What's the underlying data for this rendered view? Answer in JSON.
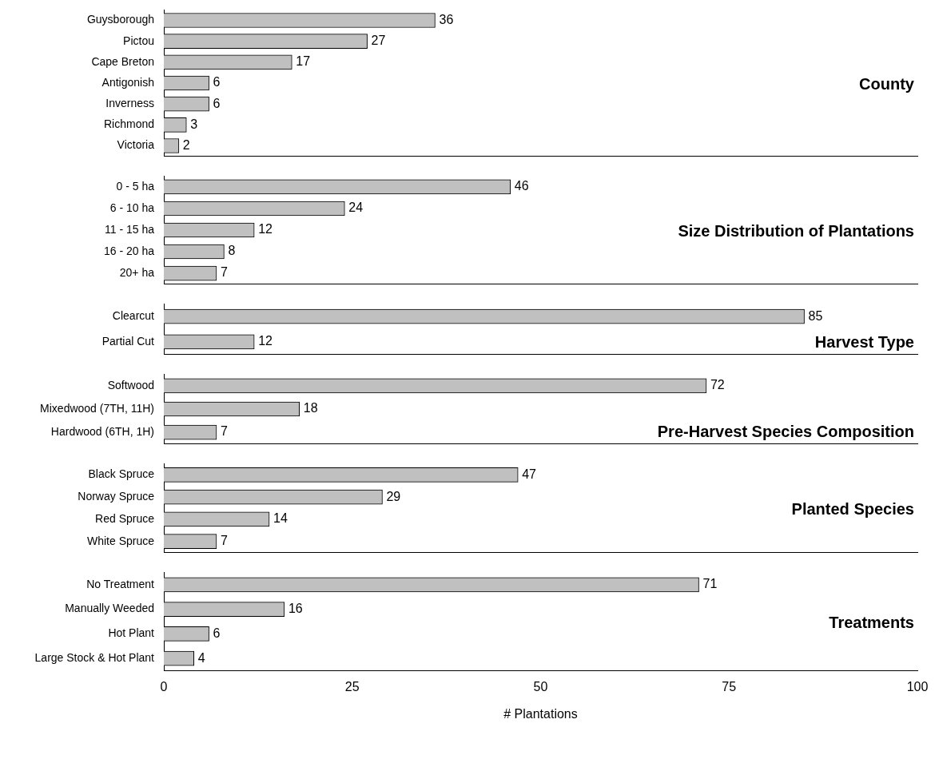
{
  "chart_data": [
    {
      "type": "bar",
      "orientation": "horizontal",
      "title": "County",
      "categories": [
        "Guysborough",
        "Pictou",
        "Cape Breton",
        "Antigonish",
        "Inverness",
        "Richmond",
        "Victoria"
      ],
      "values": [
        36,
        27,
        17,
        6,
        6,
        3,
        2
      ],
      "color": "#c0c0c0",
      "xlim": [
        0,
        100
      ],
      "xticks": [
        0,
        25,
        50,
        75,
        100
      ],
      "data_labels": true,
      "tick_labels": "y"
    },
    {
      "type": "bar",
      "orientation": "horizontal",
      "title": "Size Distribution of Plantations",
      "categories": [
        "0 - 5 ha",
        "6 - 10 ha",
        "11 - 15 ha",
        "16 - 20 ha",
        "20+ ha"
      ],
      "values": [
        46,
        24,
        12,
        8,
        7
      ],
      "color": "#c0c0c0",
      "xlim": [
        0,
        100
      ],
      "xticks": [
        0,
        25,
        50,
        75,
        100
      ],
      "data_labels": true,
      "tick_labels": "y"
    },
    {
      "type": "bar",
      "orientation": "horizontal",
      "title": "Harvest Type",
      "categories": [
        "Clearcut",
        "Partial Cut"
      ],
      "values": [
        85,
        12
      ],
      "color": "#c0c0c0",
      "xlim": [
        0,
        100
      ],
      "xticks": [
        0,
        25,
        50,
        75,
        100
      ],
      "data_labels": true,
      "tick_labels": "y"
    },
    {
      "type": "bar",
      "orientation": "horizontal",
      "title": "Pre-Harvest Species Composition",
      "categories": [
        "Softwood",
        "Mixedwood (7TH, 11H)",
        "Hardwood (6TH, 1H)"
      ],
      "values": [
        72,
        18,
        7
      ],
      "color": "#c0c0c0",
      "xlim": [
        0,
        100
      ],
      "xticks": [
        0,
        25,
        50,
        75,
        100
      ],
      "data_labels": true,
      "tick_labels": "y"
    },
    {
      "type": "bar",
      "orientation": "horizontal",
      "title": "Planted Species",
      "categories": [
        "Black Spruce",
        "Norway Spruce",
        "Red Spruce",
        "White Spruce"
      ],
      "values": [
        47,
        29,
        14,
        7
      ],
      "color": "#c0c0c0",
      "xlim": [
        0,
        100
      ],
      "xticks": [
        0,
        25,
        50,
        75,
        100
      ],
      "data_labels": true,
      "tick_labels": "y"
    },
    {
      "type": "bar",
      "orientation": "horizontal",
      "title": "Treatments",
      "xlabel": "# Plantations",
      "categories": [
        "No Treatment",
        "Manually Weeded",
        "Hot Plant",
        "Large Stock & Hot Plant"
      ],
      "values": [
        71,
        16,
        6,
        4
      ],
      "color": "#c0c0c0",
      "xlim": [
        0,
        100
      ],
      "xticks": [
        0,
        25,
        50,
        75,
        100
      ],
      "data_labels": true
    }
  ]
}
